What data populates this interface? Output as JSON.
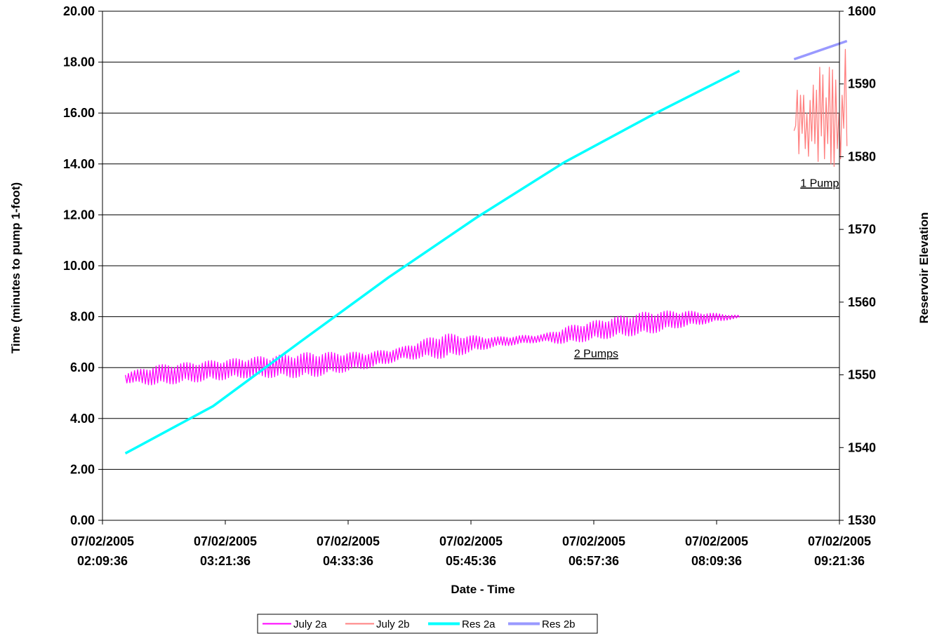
{
  "chart_data": {
    "type": "line",
    "xlabel": "Date - Time",
    "ylabel": "Time (minutes to pump 1-foot)",
    "y2label": "Reservoir Elevation",
    "ylim": [
      0,
      20
    ],
    "y2lim": [
      1530,
      1600
    ],
    "yticks": [
      "0.00",
      "2.00",
      "4.00",
      "6.00",
      "8.00",
      "10.00",
      "12.00",
      "14.00",
      "16.00",
      "18.00",
      "20.00"
    ],
    "y2ticks": [
      "1530",
      "1540",
      "1550",
      "1560",
      "1570",
      "1580",
      "1590",
      "1600"
    ],
    "xlim": [
      "07/02/2005 02:09:36",
      "07/02/2005 09:21:36"
    ],
    "xticks": [
      {
        "date": "07/02/2005",
        "time": "02:09:36"
      },
      {
        "date": "07/02/2005",
        "time": "03:21:36"
      },
      {
        "date": "07/02/2005",
        "time": "04:33:36"
      },
      {
        "date": "07/02/2005",
        "time": "05:45:36"
      },
      {
        "date": "07/02/2005",
        "time": "06:57:36"
      },
      {
        "date": "07/02/2005",
        "time": "08:09:36"
      },
      {
        "date": "07/02/2005",
        "time": "09:21:36"
      }
    ],
    "grid": "horizontal",
    "legend_position": "bottom",
    "annotations": [
      {
        "text": "2 Pumps",
        "x": "07/02/2005 06:59",
        "y": 6.4
      },
      {
        "text": "1 Pump",
        "x": "07/02/2005 09:10",
        "y": 13.1
      }
    ],
    "series": [
      {
        "name": "July 2a",
        "axis": "left",
        "color": "#FF00FF",
        "width": 1.3,
        "x_start": "07/02/2005 02:23",
        "x_end": "07/02/2005 08:23",
        "trend": [
          [
            0,
            5.6
          ],
          [
            0.1,
            5.8
          ],
          [
            0.2,
            6.0
          ],
          [
            0.3,
            6.1
          ],
          [
            0.4,
            6.3
          ],
          [
            0.5,
            6.8
          ],
          [
            0.6,
            7.0
          ],
          [
            0.7,
            7.2
          ],
          [
            0.8,
            7.6
          ],
          [
            0.9,
            7.9
          ],
          [
            1.0,
            8.0
          ]
        ],
        "amplitude": [
          [
            0,
            0.2
          ],
          [
            0.05,
            0.4
          ],
          [
            0.2,
            0.4
          ],
          [
            0.3,
            0.5
          ],
          [
            0.38,
            0.35
          ],
          [
            0.45,
            0.25
          ],
          [
            0.52,
            0.5
          ],
          [
            0.6,
            0.2
          ],
          [
            0.68,
            0.15
          ],
          [
            0.72,
            0.35
          ],
          [
            0.85,
            0.45
          ],
          [
            0.92,
            0.3
          ],
          [
            1.0,
            0.05
          ]
        ],
        "points": 400
      },
      {
        "name": "July 2b",
        "axis": "left",
        "color": "#FF8080",
        "width": 1.3,
        "values": [
          15.3,
          15.5,
          16.9,
          14.4,
          16.7,
          15.2,
          16.7,
          14.6,
          16.0,
          14.3,
          16.5,
          14.9,
          17.1,
          14.8,
          16.9,
          14.1,
          17.8,
          15.1,
          17.5,
          14.2,
          16.6,
          14.8,
          17.8,
          14.0,
          17.7,
          13.9,
          17.3,
          14.6,
          16.0,
          14.2,
          16.7,
          15.4,
          18.5,
          14.7
        ],
        "x_start": "07/02/2005 08:55",
        "x_end": "07/02/2005 09:26"
      },
      {
        "name": "Res 2a",
        "axis": "right",
        "color": "#00FFFF",
        "width": 3.5,
        "x_start": "07/02/2005 02:23",
        "x_end": "07/02/2005 08:23",
        "values": [
          1539.2,
          1545.7,
          1554.6,
          1563.4,
          1571.6,
          1579.2,
          1585.7,
          1591.8
        ]
      },
      {
        "name": "Res 2b",
        "axis": "right",
        "color": "#9999FF",
        "width": 3.5,
        "x_start": "07/02/2005 08:55",
        "x_end": "07/02/2005 09:26",
        "values": [
          1593.4,
          1595.9
        ]
      }
    ]
  }
}
